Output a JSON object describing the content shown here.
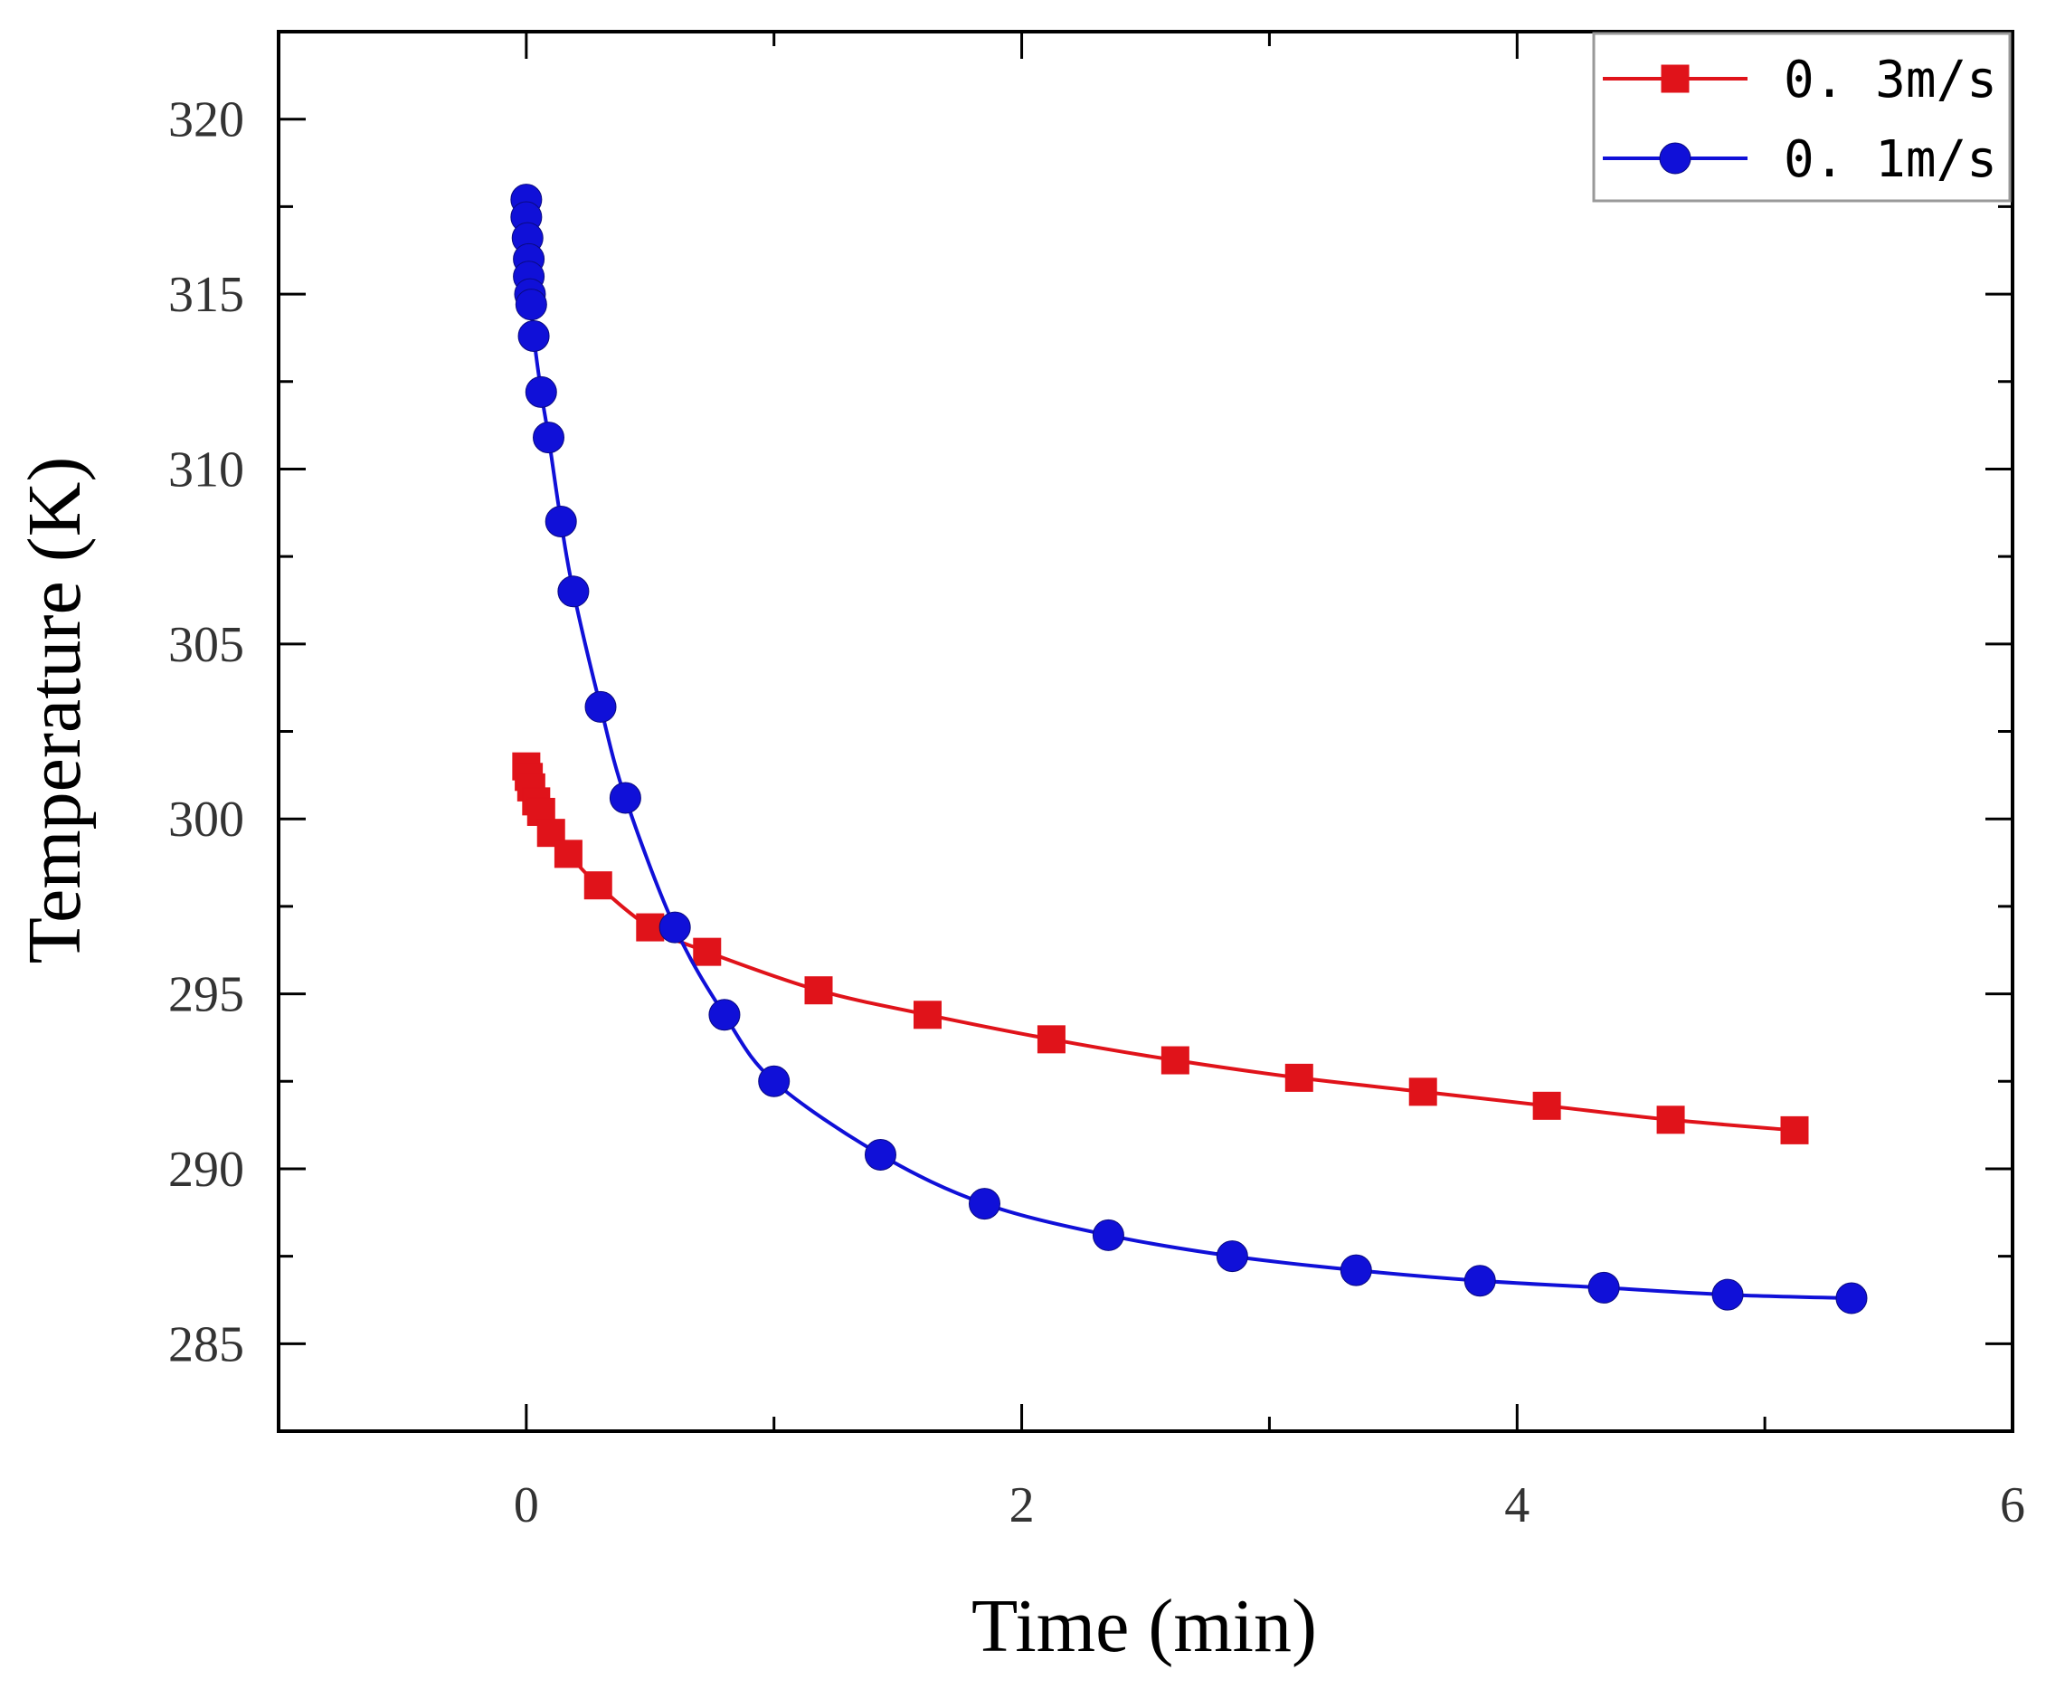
{
  "chart_data": {
    "type": "line",
    "title": "",
    "xlabel": "Time (min)",
    "ylabel": "Temperature (K)",
    "xlim": [
      -1,
      6
    ],
    "ylim": [
      282.5,
      322.5
    ],
    "xticks": [
      0,
      2,
      4,
      6
    ],
    "xtick_labels": [
      "0",
      "2",
      "4",
      "6"
    ],
    "yticks": [
      285,
      290,
      295,
      300,
      305,
      310,
      315,
      320
    ],
    "ytick_labels": [
      "285",
      "290",
      "295",
      "300",
      "305",
      "310",
      "315",
      "320"
    ],
    "grid": false,
    "legend_position": "top-right",
    "series": [
      {
        "name": "0. 3m/s",
        "color": "#e0131a",
        "marker": "square",
        "x": [
          0.0,
          0.01,
          0.02,
          0.04,
          0.06,
          0.1,
          0.17,
          0.29,
          0.5,
          0.73,
          1.18,
          1.62,
          2.12,
          2.62,
          3.12,
          3.62,
          4.12,
          4.62,
          5.12
        ],
        "y": [
          301.5,
          301.2,
          300.9,
          300.5,
          300.2,
          299.6,
          299.0,
          298.1,
          296.9,
          296.2,
          295.1,
          294.4,
          293.7,
          293.1,
          292.6,
          292.2,
          291.8,
          291.4,
          291.1
        ]
      },
      {
        "name": "0. 1m/s",
        "color": "#1010d8",
        "marker": "circle",
        "x": [
          0.0,
          0.0,
          0.005,
          0.01,
          0.01,
          0.015,
          0.02,
          0.03,
          0.06,
          0.09,
          0.14,
          0.19,
          0.3,
          0.4,
          0.6,
          0.8,
          1.0,
          1.43,
          1.85,
          2.35,
          2.85,
          3.35,
          3.85,
          4.35,
          4.85,
          5.35
        ],
        "y": [
          317.7,
          317.2,
          316.6,
          316.0,
          315.5,
          315.0,
          314.7,
          313.8,
          312.2,
          310.9,
          308.5,
          306.5,
          303.2,
          300.6,
          296.9,
          294.4,
          292.5,
          290.4,
          289.0,
          288.1,
          287.5,
          287.1,
          286.8,
          286.6,
          286.4,
          286.3
        ]
      }
    ]
  }
}
